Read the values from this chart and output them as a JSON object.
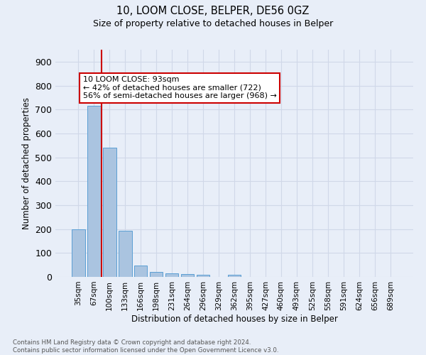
{
  "title": "10, LOOM CLOSE, BELPER, DE56 0GZ",
  "subtitle": "Size of property relative to detached houses in Belper",
  "xlabel": "Distribution of detached houses by size in Belper",
  "ylabel": "Number of detached properties",
  "categories": [
    "35sqm",
    "67sqm",
    "100sqm",
    "133sqm",
    "166sqm",
    "198sqm",
    "231sqm",
    "264sqm",
    "296sqm",
    "329sqm",
    "362sqm",
    "395sqm",
    "427sqm",
    "460sqm",
    "493sqm",
    "525sqm",
    "558sqm",
    "591sqm",
    "624sqm",
    "656sqm",
    "689sqm"
  ],
  "values": [
    200,
    715,
    540,
    193,
    47,
    22,
    15,
    12,
    8,
    0,
    10,
    0,
    0,
    0,
    0,
    0,
    0,
    0,
    0,
    0,
    0
  ],
  "bar_color": "#aac4e0",
  "bar_edge_color": "#5a9fd4",
  "grid_color": "#d0d8e8",
  "background_color": "#e8eef8",
  "vline_color": "#cc0000",
  "annotation_text": "10 LOOM CLOSE: 93sqm\n← 42% of detached houses are smaller (722)\n56% of semi-detached houses are larger (968) →",
  "annotation_box_color": "#ffffff",
  "annotation_box_edge": "#cc0000",
  "ylim": [
    0,
    950
  ],
  "yticks": [
    0,
    100,
    200,
    300,
    400,
    500,
    600,
    700,
    800,
    900
  ],
  "footer": "Contains HM Land Registry data © Crown copyright and database right 2024.\nContains public sector information licensed under the Open Government Licence v3.0."
}
